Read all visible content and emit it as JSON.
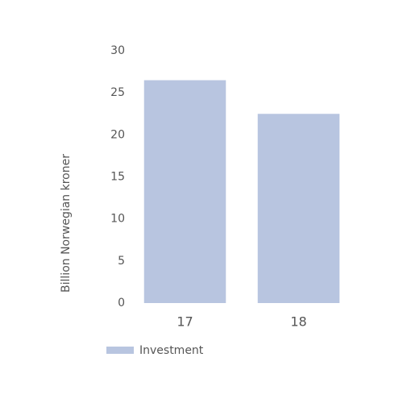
{
  "chart_data": {
    "type": "bar",
    "categories": [
      "17",
      "18"
    ],
    "series": [
      {
        "name": "Investment",
        "color": "#b8c5e0",
        "values": [
          26.5,
          22.5
        ]
      }
    ],
    "ylabel": "Billion Norwegian kroner",
    "ylim": [
      0,
      30
    ],
    "yticks": [
      0,
      5,
      10,
      15,
      20,
      25,
      30
    ],
    "grid": false,
    "legend": "bottom"
  }
}
